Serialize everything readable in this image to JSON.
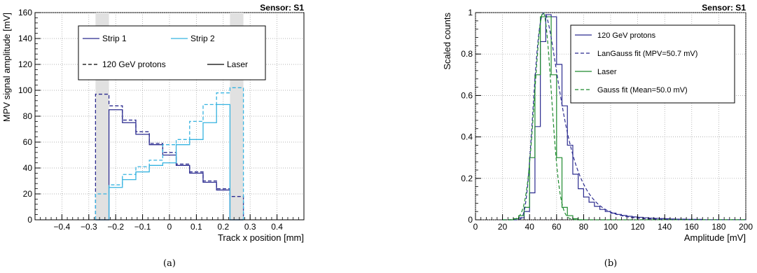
{
  "chart_data": [
    {
      "type": "line",
      "panel_label": "(a)",
      "sensor_label": "Sensor: S1",
      "xlabel": "Track x position [mm]",
      "ylabel": "MPV signal amplitude [mV]",
      "xlim": [
        -0.5,
        0.5
      ],
      "ylim": [
        0,
        160
      ],
      "x_ticks": [
        "-0.4",
        "-0.3",
        "-0.2",
        "-0.1",
        "0",
        "0.1",
        "0.2",
        "0.3",
        "0.4"
      ],
      "y_ticks": [
        "0",
        "20",
        "40",
        "60",
        "80",
        "100",
        "120",
        "140",
        "160"
      ],
      "grid": true,
      "shaded_regions": [
        [
          -0.275,
          -0.225
        ],
        [
          0.225,
          0.275
        ]
      ],
      "legend": {
        "placement": "top",
        "strip1": "Strip 1",
        "strip2": "Strip 2",
        "protons": "120 GeV protons",
        "laser": "Laser"
      },
      "bin_edges": [
        -0.275,
        -0.225,
        -0.175,
        -0.125,
        -0.075,
        -0.025,
        0.025,
        0.075,
        0.125,
        0.175,
        0.225,
        0.275
      ],
      "series": [
        {
          "name": "Strip 1",
          "source": "120 GeV protons",
          "color": "#2b2b8f",
          "dash": true,
          "values": [
            97,
            88,
            77,
            68,
            59,
            52,
            43,
            37,
            30,
            24,
            18
          ]
        },
        {
          "name": "Strip 1",
          "source": "Laser",
          "color": "#2b2b8f",
          "dash": false,
          "values": [
            0,
            85,
            75,
            66,
            58,
            50,
            42,
            36,
            29,
            23,
            0
          ]
        },
        {
          "name": "Strip 2",
          "source": "120 GeV protons",
          "color": "#36b3e0",
          "dash": true,
          "values": [
            20,
            27,
            35,
            41,
            46,
            58,
            62,
            76,
            89,
            98,
            102
          ]
        },
        {
          "name": "Strip 2",
          "source": "Laser",
          "color": "#36b3e0",
          "dash": false,
          "values": [
            0,
            25,
            31,
            37,
            42,
            44,
            58,
            62,
            75,
            89,
            0
          ]
        }
      ]
    },
    {
      "type": "line",
      "panel_label": "(b)",
      "sensor_label": "Sensor: S1",
      "xlabel": "Amplitude [mV]",
      "ylabel": "Scaled counts",
      "xlim": [
        0,
        200
      ],
      "ylim": [
        0,
        1.0
      ],
      "x_ticks": [
        "0",
        "20",
        "40",
        "60",
        "80",
        "100",
        "120",
        "140",
        "160",
        "180",
        "200"
      ],
      "y_ticks": [
        "0",
        "0.2",
        "0.4",
        "0.6",
        "0.8",
        "1"
      ],
      "grid": true,
      "legend": {
        "placement": "top-right",
        "protons": "120 GeV protons",
        "langauss": "LanGauss fit (MPV=50.7 mV)",
        "laser": "Laser",
        "gauss": "Gauss fit (Mean=50.0 mV)"
      },
      "bin_width": 4,
      "series": [
        {
          "name": "120 GeV protons",
          "kind": "histogram",
          "color": "#2b2b8f",
          "x_start": 32,
          "values": [
            0.01,
            0.04,
            0.13,
            0.45,
            0.86,
            0.99,
            0.98,
            0.75,
            0.55,
            0.36,
            0.22,
            0.15,
            0.11,
            0.085,
            0.065,
            0.05,
            0.04,
            0.032,
            0.026,
            0.021,
            0.017,
            0.014,
            0.012,
            0.01,
            0.008,
            0.007,
            0.006,
            0.005,
            0.004,
            0.003,
            0.003,
            0.002,
            0.002,
            0.002
          ]
        },
        {
          "name": "LanGauss fit (MPV=50.7 mV)",
          "kind": "fit",
          "color": "#2b2b8f",
          "mpv": 50.7
        },
        {
          "name": "Laser",
          "kind": "histogram",
          "color": "#1e8a2e",
          "x_start": 24,
          "values": [
            0.0,
            0.005,
            0.02,
            0.06,
            0.3,
            0.7,
            0.98,
            0.98,
            0.7,
            0.3,
            0.06,
            0.02,
            0.005,
            0.0
          ]
        },
        {
          "name": "Gauss fit (Mean=50.0 mV)",
          "kind": "fit",
          "color": "#1e8a2e",
          "mean": 50.0,
          "sigma": 6.2
        }
      ]
    }
  ]
}
